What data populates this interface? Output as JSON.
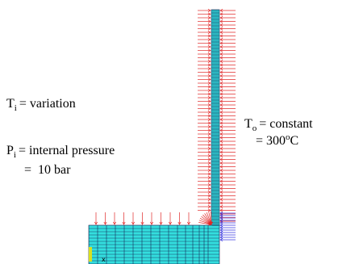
{
  "labels": {
    "inner_temperature": {
      "symbol": "T",
      "subscript": "i",
      "text": "= variation"
    },
    "internal_pressure": {
      "symbol": "P",
      "subscript": "i",
      "text": "= internal pressure",
      "value": "=  10 bar"
    },
    "outer_temperature": {
      "symbol": "T",
      "subscript": "o",
      "text": "= constant",
      "value": "= 300",
      "superscript": "o",
      "unit": "C"
    },
    "axis": "x"
  }
}
